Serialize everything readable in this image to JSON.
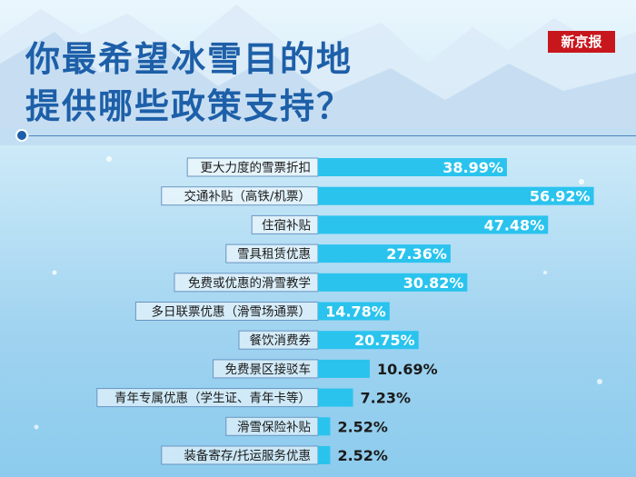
{
  "header": {
    "title_line1": "你最希望冰雪目的地",
    "title_line2": "提供哪些政策支持？",
    "brand": "新京报"
  },
  "colors": {
    "bar": "#2ac3ee",
    "title": "#1d5fa8",
    "brand": "#c8161d",
    "label_box_border": "#6a95c2"
  },
  "chart_data": {
    "type": "bar",
    "orientation": "horizontal",
    "categories": [
      "更大力度的雪票折扣",
      "交通补贴（高铁/机票）",
      "住宿补贴",
      "雪具租赁优惠",
      "免费或优惠的滑雪教学",
      "多日联票优惠（滑雪场通票）",
      "餐饮消费券",
      "免费景区接驳车",
      "青年专属优惠（学生证、青年卡等）",
      "滑雪保险补贴",
      "装备寄存/托运服务优惠"
    ],
    "values": [
      38.99,
      56.92,
      47.48,
      27.36,
      30.82,
      14.78,
      20.75,
      10.69,
      7.23,
      2.52,
      2.52
    ],
    "value_labels": [
      "38.99%",
      "56.92%",
      "47.48%",
      "27.36%",
      "30.82%",
      "14.78%",
      "20.75%",
      "10.69%",
      "7.23%",
      "2.52%",
      "2.52%"
    ],
    "xlim": [
      0,
      60
    ],
    "grid": false
  }
}
